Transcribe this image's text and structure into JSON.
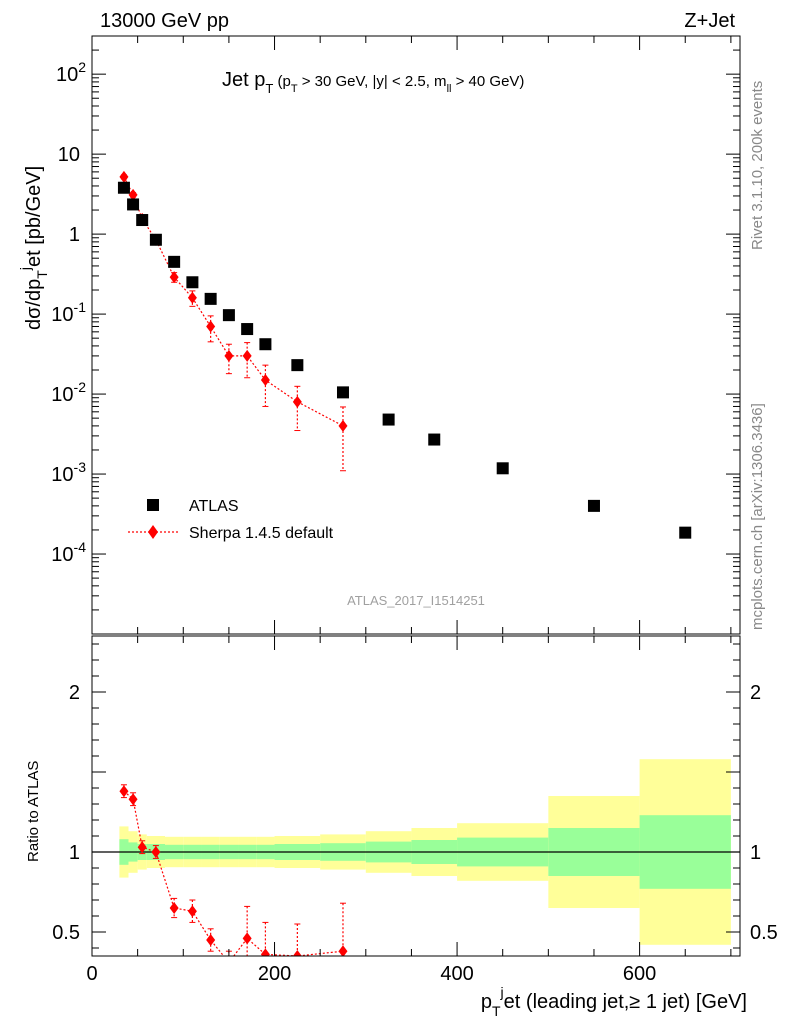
{
  "header": {
    "left": "13000 GeV pp",
    "right": "Z+Jet"
  },
  "side_labels": {
    "rivet": "Rivet 3.1.10,  200k events",
    "mcplots": "mcplots.cern.ch [arXiv:1306.3436]"
  },
  "watermark": "ATLAS_2017_I1514251",
  "colors": {
    "atlas": "#000000",
    "sherpa": "#ff0000",
    "band_inner": "#99ff99",
    "band_outer": "#ffff99"
  },
  "chart_data": [
    {
      "type": "scatter",
      "title": "Jet p_T (p_T > 30 GeV, |y| < 2.5, m_ll > 40 GeV)",
      "ylabel": "dσ/dp_T^j et [pb/GeV]",
      "yscale": "log",
      "xlim": [
        0,
        710
      ],
      "ylim": [
        1e-05,
        300
      ],
      "y_ticks": [
        "10^-4",
        "10^-3",
        "10^-2",
        "10^-1",
        "1",
        "10",
        "10^2"
      ],
      "legend": {
        "position": "middle-left",
        "entries": [
          "ATLAS",
          "Sherpa 1.4.5 default"
        ]
      },
      "series": [
        {
          "name": "ATLAS",
          "marker": "square",
          "x": [
            35,
            45,
            55,
            70,
            90,
            110,
            130,
            150,
            170,
            190,
            225,
            275,
            325,
            375,
            450,
            550,
            650
          ],
          "y": [
            3.8,
            2.35,
            1.5,
            0.85,
            0.45,
            0.25,
            0.155,
            0.097,
            0.065,
            0.042,
            0.023,
            0.0105,
            0.0048,
            0.0027,
            0.00118,
            0.0004,
            0.000185
          ]
        },
        {
          "name": "Sherpa 1.4.5 default",
          "marker": "diamond",
          "line": "dotted",
          "x": [
            35,
            45,
            55,
            70,
            90,
            110,
            130,
            150,
            170,
            190,
            225,
            275
          ],
          "y": [
            5.2,
            3.1,
            1.55,
            0.85,
            0.29,
            0.16,
            0.07,
            0.03,
            0.03,
            0.015,
            0.008,
            0.004
          ],
          "y_err_low": [
            0.3,
            0.2,
            0.1,
            0.06,
            0.04,
            0.035,
            0.025,
            0.012,
            0.014,
            0.008,
            0.0045,
            0.0029
          ],
          "y_err_high": [
            0.3,
            0.2,
            0.1,
            0.06,
            0.04,
            0.035,
            0.025,
            0.012,
            0.014,
            0.008,
            0.0045,
            0.0029
          ]
        }
      ]
    },
    {
      "type": "scatter",
      "xlabel": "p_T^j et (leading jet,≥ 1 jet) [GeV]",
      "ylabel": "Ratio to ATLAS",
      "xlim": [
        0,
        710
      ],
      "ylim": [
        0.35,
        2.35
      ],
      "x_ticks": [
        "0",
        "200",
        "400",
        "600"
      ],
      "y_ticks": [
        "0.5",
        "1",
        "2"
      ],
      "bands": {
        "edges": [
          30,
          40,
          50,
          60,
          80,
          100,
          120,
          140,
          160,
          180,
          200,
          250,
          300,
          350,
          400,
          500,
          600,
          700
        ],
        "inner_low": [
          0.92,
          0.94,
          0.95,
          0.95,
          0.955,
          0.955,
          0.955,
          0.955,
          0.955,
          0.955,
          0.95,
          0.945,
          0.935,
          0.925,
          0.91,
          0.85,
          0.77
        ],
        "inner_high": [
          1.08,
          1.06,
          1.05,
          1.05,
          1.045,
          1.045,
          1.045,
          1.045,
          1.045,
          1.045,
          1.05,
          1.055,
          1.065,
          1.075,
          1.09,
          1.15,
          1.23
        ],
        "outer_low": [
          0.84,
          0.87,
          0.89,
          0.9,
          0.905,
          0.905,
          0.905,
          0.905,
          0.905,
          0.905,
          0.9,
          0.89,
          0.87,
          0.85,
          0.82,
          0.65,
          0.42
        ],
        "outer_high": [
          1.16,
          1.13,
          1.11,
          1.1,
          1.095,
          1.095,
          1.095,
          1.095,
          1.095,
          1.095,
          1.1,
          1.11,
          1.13,
          1.15,
          1.18,
          1.35,
          1.58
        ]
      },
      "series": [
        {
          "name": "Sherpa 1.4.5 default",
          "marker": "diamond",
          "line": "dotted",
          "x": [
            35,
            45,
            55,
            70,
            90,
            110,
            130,
            150,
            170,
            190,
            225,
            275
          ],
          "y": [
            1.38,
            1.33,
            1.03,
            1.0,
            0.65,
            0.63,
            0.45,
            0.31,
            0.46,
            0.36,
            0.35,
            0.38
          ],
          "y_err_low": [
            0.04,
            0.04,
            0.04,
            0.04,
            0.06,
            0.07,
            0.07,
            0.07,
            0.2,
            0.2,
            0.2,
            0.3
          ],
          "y_err_high": [
            0.04,
            0.04,
            0.04,
            0.04,
            0.06,
            0.07,
            0.07,
            0.07,
            0.2,
            0.2,
            0.2,
            0.3
          ]
        }
      ]
    }
  ]
}
